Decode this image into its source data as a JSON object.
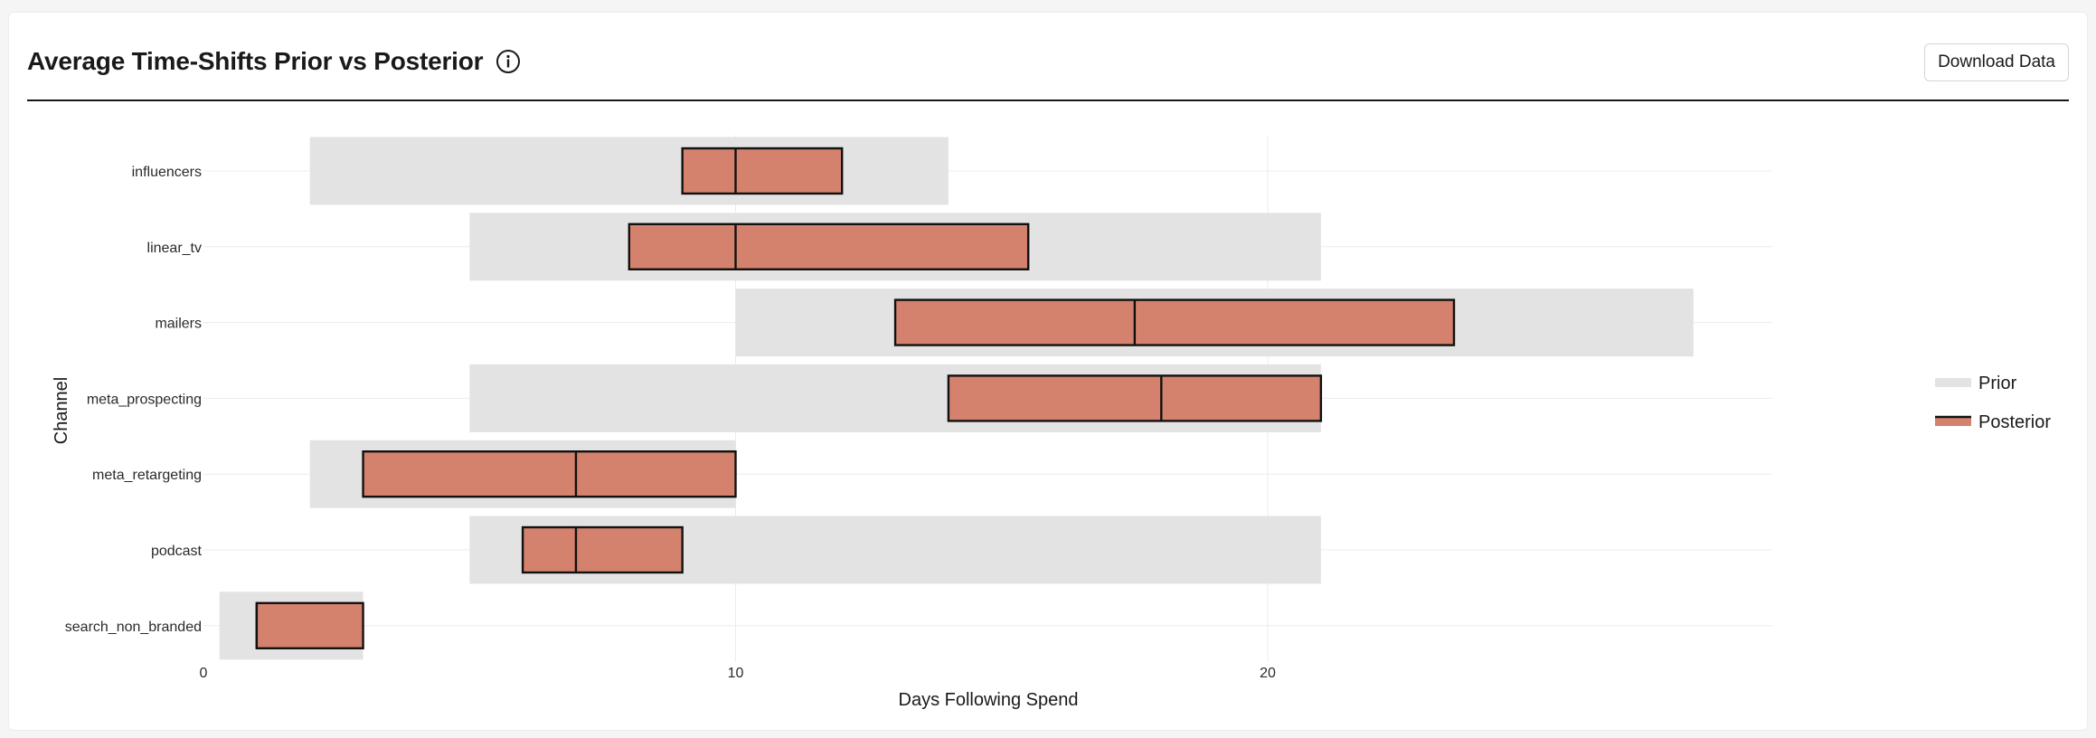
{
  "header": {
    "title": "Average Time-Shifts Prior vs Posterior",
    "download_label": "Download Data"
  },
  "chart_data": {
    "type": "box",
    "title": "Average Time-Shifts Prior vs Posterior",
    "xlabel": "Days Following Spend",
    "ylabel": "Channel",
    "xlim": [
      0,
      29.5
    ],
    "xticks": [
      0,
      10,
      20
    ],
    "grid": true,
    "legend_position": "right",
    "legend": [
      "Prior",
      "Posterior"
    ],
    "colors": {
      "prior": "#e3e3e3",
      "posterior": "#d4826e",
      "outline": "#111111",
      "grid": "#ececec"
    },
    "categories": [
      "influencers",
      "linear_tv",
      "mailers",
      "meta_prospecting",
      "meta_retargeting",
      "podcast",
      "search_non_branded"
    ],
    "prior": [
      {
        "low": 2,
        "high": 14
      },
      {
        "low": 5,
        "high": 21
      },
      {
        "low": 10,
        "high": 28
      },
      {
        "low": 5,
        "high": 21
      },
      {
        "low": 2,
        "high": 10
      },
      {
        "low": 5,
        "high": 21
      },
      {
        "low": 0.3,
        "high": 3
      }
    ],
    "posterior": [
      {
        "q1": 9,
        "median": 10,
        "q3": 12
      },
      {
        "q1": 8,
        "median": 10,
        "q3": 15.5
      },
      {
        "q1": 13,
        "median": 17.5,
        "q3": 23.5
      },
      {
        "q1": 14,
        "median": 18,
        "q3": 21
      },
      {
        "q1": 3,
        "median": 7,
        "q3": 10
      },
      {
        "q1": 6,
        "median": 7,
        "q3": 9
      },
      {
        "q1": 1,
        "median": 1,
        "q3": 3
      }
    ]
  }
}
